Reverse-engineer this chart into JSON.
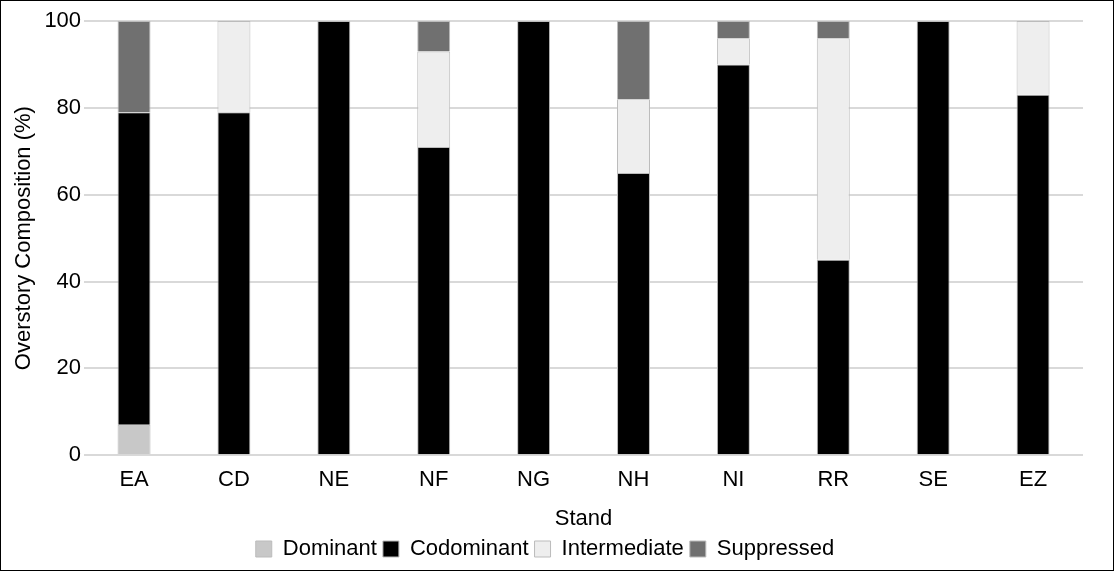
{
  "chart_data": {
    "type": "bar",
    "stacked": true,
    "xlabel": "Stand",
    "ylabel": "Overstory Composition (%)",
    "categories": [
      "EA",
      "CD",
      "NE",
      "NF",
      "NG",
      "NH",
      "NI",
      "RR",
      "SE",
      "EZ"
    ],
    "series": [
      {
        "name": "Dominant",
        "color": "#c8c8c8",
        "values": [
          7,
          0,
          0,
          0,
          0,
          0,
          0,
          0,
          0,
          0
        ]
      },
      {
        "name": "Codominant",
        "color": "#000000",
        "values": [
          72,
          79,
          100,
          71,
          100,
          65,
          90,
          45,
          100,
          83
        ]
      },
      {
        "name": "Intermediate",
        "color": "#eeeeee",
        "values": [
          0,
          21,
          0,
          22,
          0,
          17,
          6,
          51,
          0,
          17
        ]
      },
      {
        "name": "Suppressed",
        "color": "#707070",
        "values": [
          21,
          0,
          0,
          7,
          0,
          18,
          4,
          4,
          0,
          0
        ]
      }
    ],
    "ylim": [
      0,
      100
    ],
    "yticks": [
      0,
      20,
      40,
      60,
      80,
      100
    ],
    "grid": "y",
    "legend": "bottom"
  }
}
